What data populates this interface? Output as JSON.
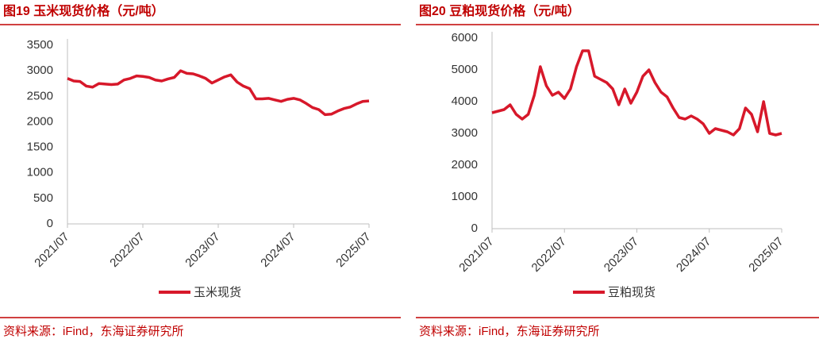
{
  "chart_data": [
    {
      "type": "line",
      "title": "图19 玉米现货价格（元/吨）",
      "source": "资料来源：iFind，东海证券研究所",
      "x": [
        "2021/07",
        "2021/08",
        "2021/09",
        "2021/10",
        "2021/11",
        "2021/12",
        "2022/01",
        "2022/02",
        "2022/03",
        "2022/04",
        "2022/05",
        "2022/06",
        "2022/07",
        "2022/08",
        "2022/09",
        "2022/10",
        "2022/11",
        "2022/12",
        "2023/01",
        "2023/02",
        "2023/03",
        "2023/04",
        "2023/05",
        "2023/06",
        "2023/07",
        "2023/08",
        "2023/09",
        "2023/10",
        "2023/11",
        "2023/12",
        "2024/01",
        "2024/02",
        "2024/03",
        "2024/04",
        "2024/05",
        "2024/06",
        "2024/07",
        "2024/08",
        "2024/09",
        "2024/10",
        "2024/11",
        "2024/12",
        "2025/01",
        "2025/02",
        "2025/03",
        "2025/04",
        "2025/05",
        "2025/06",
        "2025/07"
      ],
      "series": [
        {
          "name": "玉米现货",
          "color": "#d7182a",
          "values": [
            2850,
            2800,
            2790,
            2700,
            2680,
            2750,
            2740,
            2730,
            2740,
            2820,
            2850,
            2900,
            2890,
            2870,
            2820,
            2800,
            2840,
            2870,
            3000,
            2950,
            2940,
            2900,
            2850,
            2760,
            2820,
            2880,
            2920,
            2780,
            2700,
            2650,
            2450,
            2450,
            2460,
            2430,
            2400,
            2440,
            2460,
            2430,
            2360,
            2280,
            2240,
            2140,
            2150,
            2210,
            2260,
            2290,
            2350,
            2400,
            2410
          ]
        }
      ],
      "ylim": [
        0,
        3500
      ],
      "yticks": [
        0,
        500,
        1000,
        1500,
        2000,
        2500,
        3000,
        3500
      ],
      "xticks": [
        "2021/07",
        "2022/07",
        "2023/07",
        "2024/07",
        "2025/07"
      ]
    },
    {
      "type": "line",
      "title": "图20 豆粕现货价格（元/吨）",
      "source": "资料来源：iFind，东海证券研究所",
      "x": [
        "2021/07",
        "2021/08",
        "2021/09",
        "2021/10",
        "2021/11",
        "2021/12",
        "2022/01",
        "2022/02",
        "2022/03",
        "2022/04",
        "2022/05",
        "2022/06",
        "2022/07",
        "2022/08",
        "2022/09",
        "2022/10",
        "2022/11",
        "2022/12",
        "2023/01",
        "2023/02",
        "2023/03",
        "2023/04",
        "2023/05",
        "2023/06",
        "2023/07",
        "2023/08",
        "2023/09",
        "2023/10",
        "2023/11",
        "2023/12",
        "2024/01",
        "2024/02",
        "2024/03",
        "2024/04",
        "2024/05",
        "2024/06",
        "2024/07",
        "2024/08",
        "2024/09",
        "2024/10",
        "2024/11",
        "2024/12",
        "2025/01",
        "2025/02",
        "2025/03",
        "2025/04",
        "2025/05",
        "2025/06",
        "2025/07"
      ],
      "series": [
        {
          "name": "豆粕现货",
          "color": "#d7182a",
          "values": [
            3650,
            3700,
            3750,
            3900,
            3600,
            3450,
            3600,
            4200,
            5100,
            4500,
            4200,
            4300,
            4100,
            4400,
            5100,
            5600,
            5600,
            4800,
            4700,
            4600,
            4400,
            3900,
            4400,
            3950,
            4300,
            4800,
            5000,
            4600,
            4300,
            4150,
            3800,
            3500,
            3450,
            3550,
            3450,
            3300,
            3000,
            3150,
            3100,
            3050,
            2950,
            3150,
            3800,
            3600,
            3050,
            4000,
            3000,
            2950,
            3000
          ]
        }
      ],
      "ylim": [
        0,
        6000
      ],
      "yticks": [
        0,
        1000,
        2000,
        3000,
        4000,
        5000,
        6000
      ],
      "xticks": [
        "2021/07",
        "2022/07",
        "2023/07",
        "2024/07",
        "2025/07"
      ]
    }
  ]
}
